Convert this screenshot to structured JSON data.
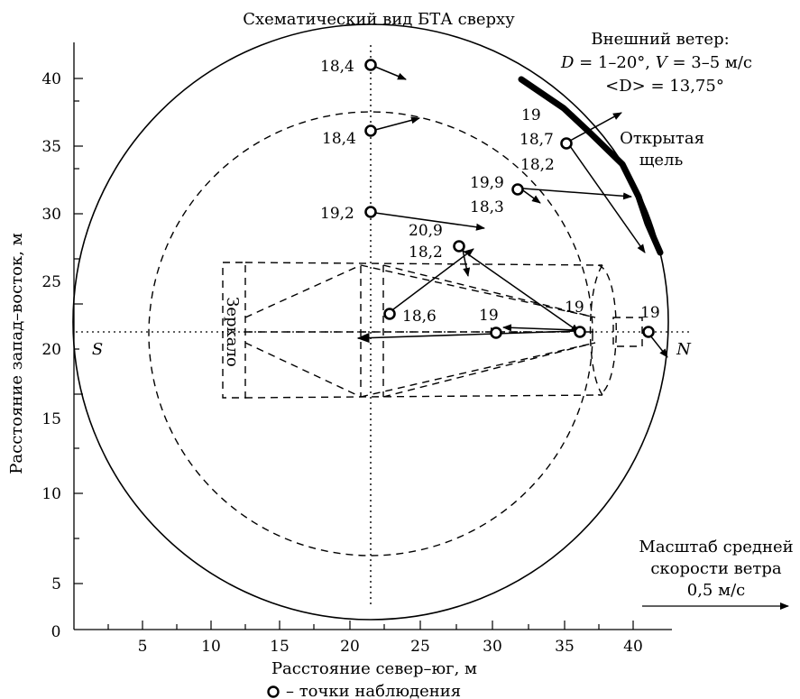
{
  "title": "Схематический вид БТА сверху",
  "axes": {
    "xlabel": "Расстояние север–юг, м",
    "ylabel": "Расстояние запад–восток, м",
    "x_ticks": [
      "5",
      "10",
      "15",
      "20",
      "25",
      "30",
      "35",
      "40"
    ],
    "y_ticks": [
      "5",
      "10",
      "15",
      "20",
      "25",
      "30",
      "35",
      "40"
    ],
    "origin_label": "0"
  },
  "wind": {
    "line1": "Внешний ветер:",
    "line2_d": "D",
    "line2_rest": " = 1–20°, ",
    "line2_v": "V",
    "line2_rest2": " = 3–5 м/с",
    "line3": "<D> = 13,75°"
  },
  "gap": {
    "line1": "Открытая",
    "line2": "щель"
  },
  "mirror_label": "Зеркало",
  "south_label": "S",
  "north_label": "N",
  "scale": {
    "line1": "Масштаб средней",
    "line2": "скорости ветра",
    "line3": "0,5 м/с"
  },
  "legend": {
    "text": "– точки наблюдения"
  },
  "observations": {
    "p1": "18,4",
    "p2": "18,4",
    "p3_top": "19",
    "p3_bottom": "18,7",
    "p4_top": "18,2",
    "p4_left": "19,9",
    "p4_bottom": "18,3",
    "p5": "19,2",
    "p6_top": "20,9",
    "p6_bottom": "18,2",
    "p7": "18,6",
    "p8": "19",
    "p9": "19",
    "p10": "19"
  }
}
